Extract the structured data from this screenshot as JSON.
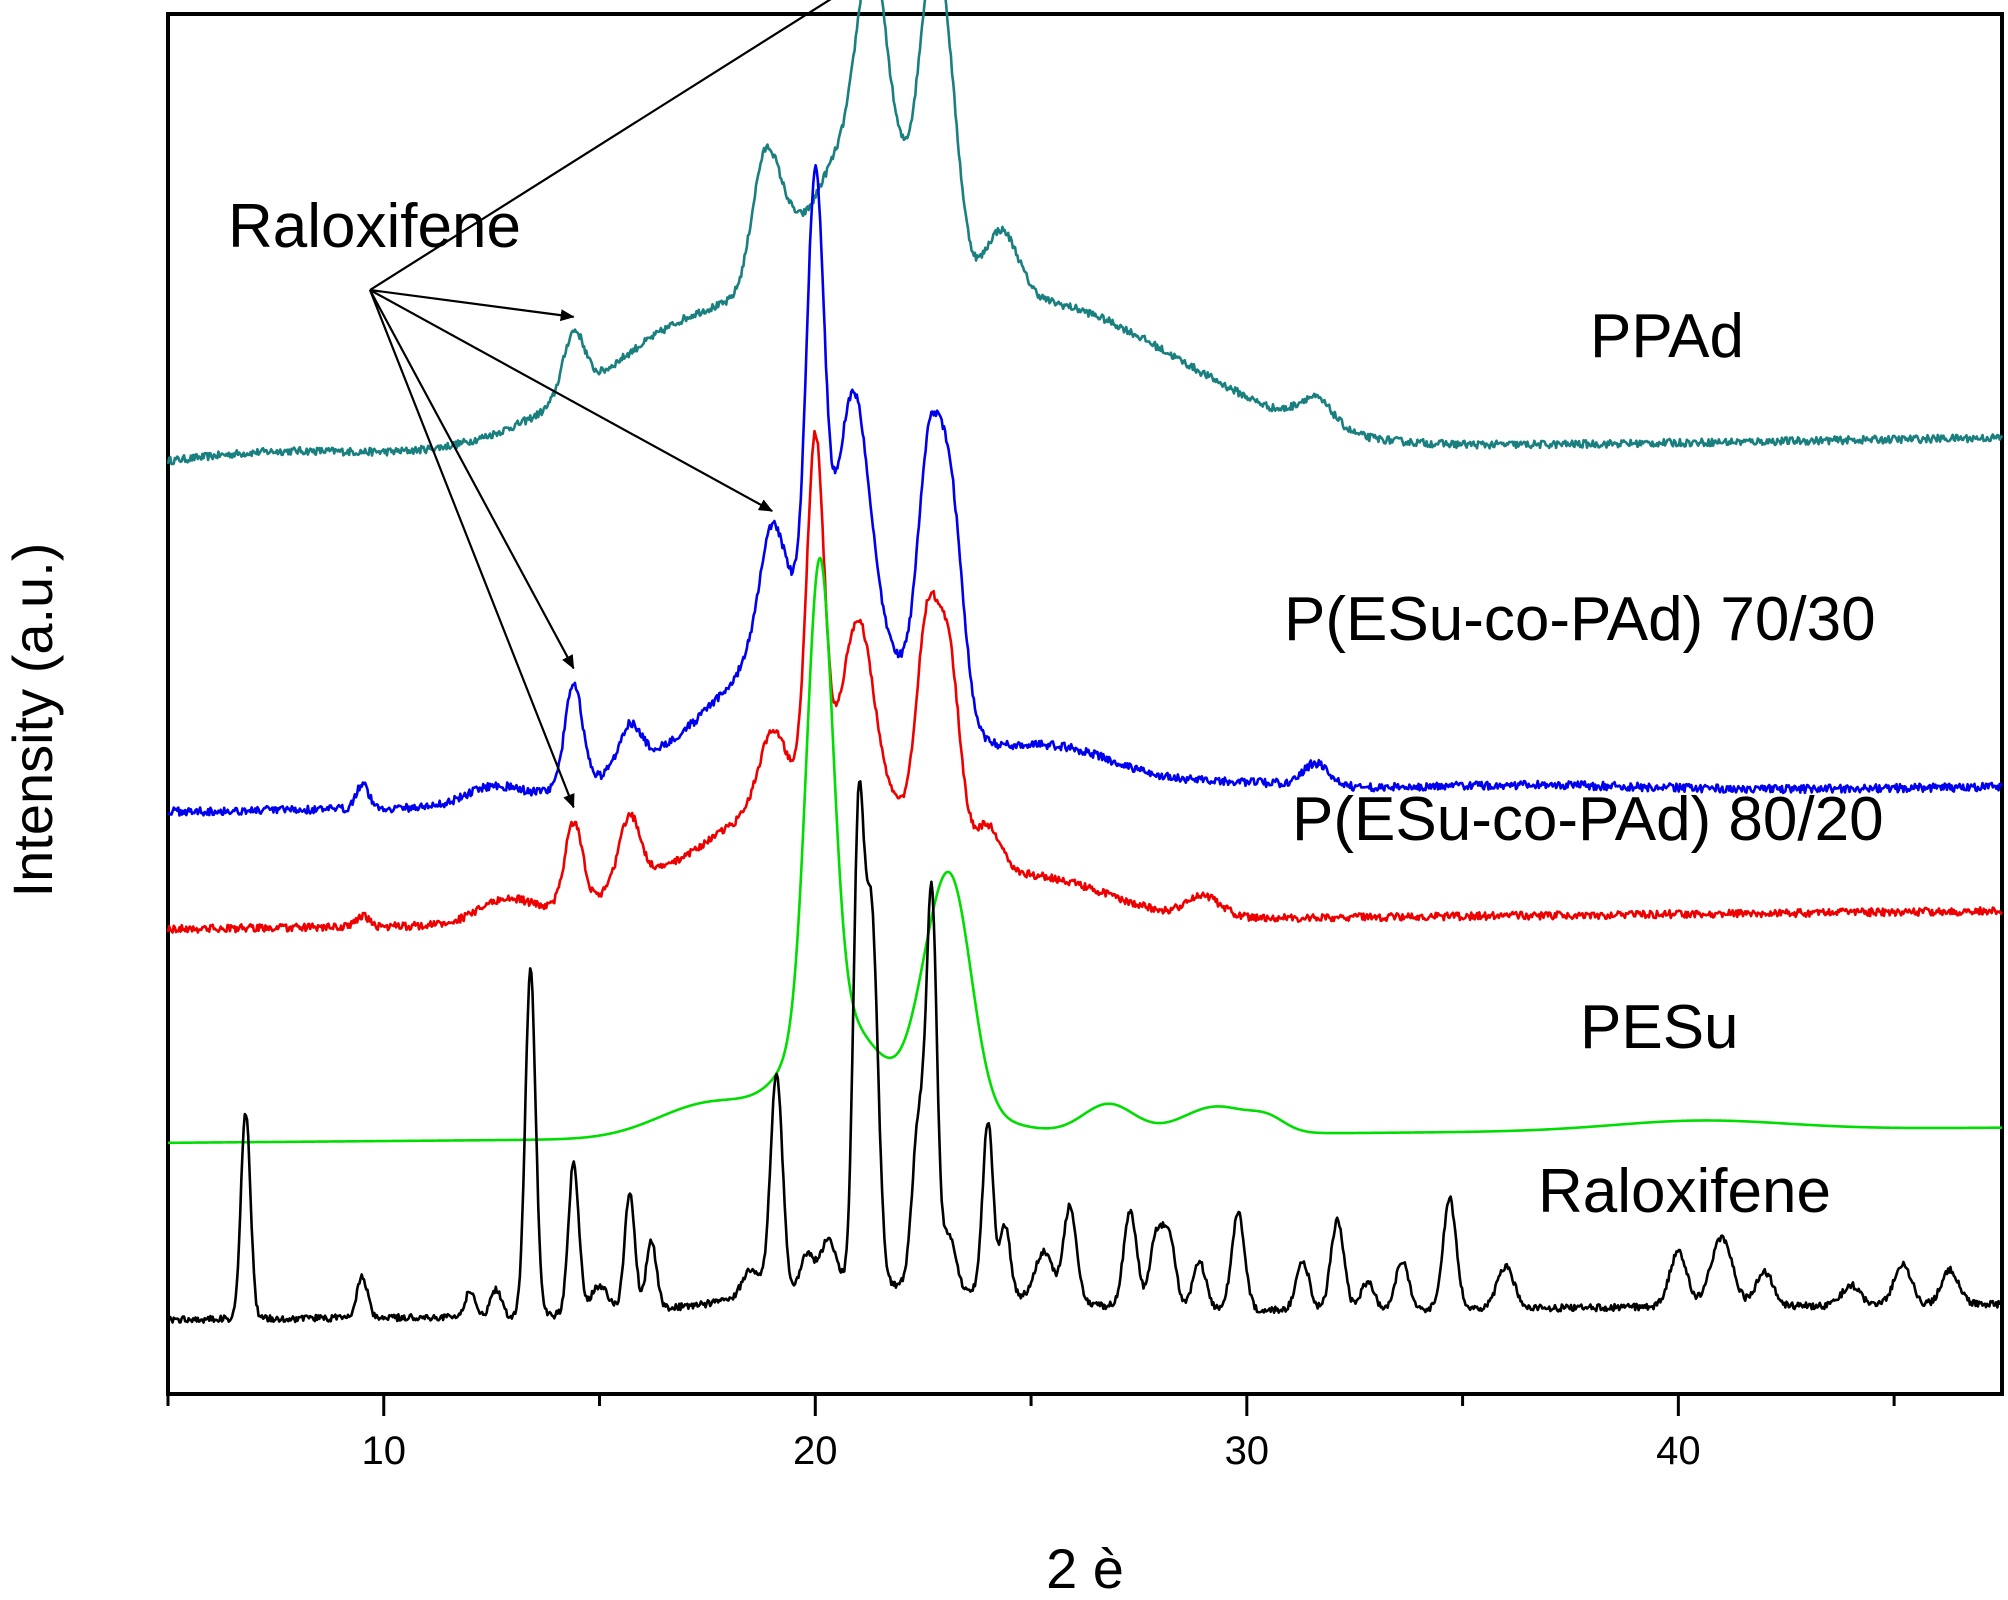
{
  "chart_data": {
    "type": "line",
    "title": "",
    "xlabel": "2 è",
    "ylabel": "Intensity (a.u.)",
    "xlim": [
      5,
      47.5
    ],
    "ylim": [
      0,
      100
    ],
    "xticks": [
      10,
      20,
      30,
      40
    ],
    "xtick_labels": [
      "10",
      "20",
      "30",
      "40"
    ],
    "yticks_shown": false,
    "grid": false,
    "annotation": {
      "label": "Raloxifene",
      "arrow_targets": [
        {
          "series": "PPAd",
          "x": 14.4
        },
        {
          "series": "PPAd",
          "x": 22.7
        },
        {
          "series": "P(ESu-co-PAd) 70/30",
          "x": 14.4
        },
        {
          "series": "P(ESu-co-PAd) 70/30",
          "x": 19.0
        },
        {
          "series": "P(ESu-co-PAd) 80/20",
          "x": 14.4
        }
      ]
    },
    "series": [
      {
        "name": "PPAd",
        "color": "#1a7f7f",
        "baseline_start": 67.2,
        "baseline_end": 69.3,
        "peaks": [
          [
            7.5,
            0.9,
            2.0
          ],
          [
            13.8,
            0.5,
            1.5
          ],
          [
            14.4,
            4.5,
            0.25
          ],
          [
            16.0,
            2.2,
            1.5
          ],
          [
            18.0,
            2.5,
            1.5
          ],
          [
            18.8,
            7.5,
            0.3
          ],
          [
            19.2,
            5.0,
            0.4
          ],
          [
            20.5,
            10.0,
            0.6
          ],
          [
            21.3,
            18.5,
            0.35
          ],
          [
            22.0,
            8.0,
            0.5
          ],
          [
            22.7,
            18.0,
            0.3
          ],
          [
            23.1,
            11.0,
            0.3
          ],
          [
            24.3,
            5.0,
            0.4
          ],
          [
            21.5,
            10.5,
            4.5
          ],
          [
            26.0,
            3.5,
            2.0
          ],
          [
            29.0,
            1.8,
            2.0
          ],
          [
            31.6,
            2.0,
            0.4
          ]
        ],
        "noise": 0.28
      },
      {
        "name": "P(ESu-co-PAd) 70/30",
        "color": "#0000ee",
        "baseline_start": 42.2,
        "baseline_end": 44.0,
        "peaks": [
          [
            9.5,
            1.8,
            0.15
          ],
          [
            12.5,
            1.2,
            0.6
          ],
          [
            14.4,
            7.5,
            0.2
          ],
          [
            15.7,
            3.0,
            0.25
          ],
          [
            19.0,
            8.0,
            0.3
          ],
          [
            20.0,
            31.0,
            0.2
          ],
          [
            20.9,
            16.0,
            0.35
          ],
          [
            22.6,
            15.0,
            0.25
          ],
          [
            23.1,
            17.5,
            0.3
          ],
          [
            20.5,
            12.0,
            1.8
          ],
          [
            18.0,
            4.0,
            2.5
          ],
          [
            25.5,
            3.5,
            1.5
          ],
          [
            29.5,
            1.0,
            2.0
          ],
          [
            31.6,
            1.6,
            0.3
          ],
          [
            36.0,
            0.6,
            3.0
          ]
        ],
        "noise": 0.3
      },
      {
        "name": "P(ESu-co-PAd) 80/20",
        "color": "#ee0000",
        "baseline_start": 33.7,
        "baseline_end": 35.0,
        "peaks": [
          [
            9.5,
            0.8,
            0.15
          ],
          [
            12.8,
            1.5,
            0.6
          ],
          [
            14.4,
            6.0,
            0.2
          ],
          [
            15.7,
            5.0,
            0.25
          ],
          [
            19.0,
            5.0,
            0.3
          ],
          [
            20.0,
            25.0,
            0.2
          ],
          [
            21.0,
            12.0,
            0.35
          ],
          [
            22.6,
            15.0,
            0.25
          ],
          [
            23.1,
            13.5,
            0.25
          ],
          [
            24.0,
            3.0,
            0.3
          ],
          [
            20.8,
            8.0,
            2.0
          ],
          [
            18.0,
            4.0,
            2.5
          ],
          [
            25.5,
            2.5,
            1.5
          ],
          [
            29.0,
            1.5,
            0.4
          ]
        ],
        "noise": 0.28
      },
      {
        "name": "PESu",
        "color": "#00dd00",
        "baseline_start": 18.2,
        "baseline_end": 19.3,
        "peaks": [
          [
            17.5,
            2.3,
            1.2
          ],
          [
            20.1,
            33.0,
            0.3
          ],
          [
            20.3,
            6.0,
            0.8
          ],
          [
            22.6,
            5.0,
            0.4
          ],
          [
            23.2,
            14.5,
            0.45
          ],
          [
            21.5,
            4.0,
            1.8
          ],
          [
            26.8,
            2.2,
            0.6
          ],
          [
            29.3,
            2.0,
            0.8
          ],
          [
            30.5,
            0.8,
            0.4
          ],
          [
            40.5,
            0.7,
            2.0
          ]
        ],
        "noise": 0.0
      },
      {
        "name": "Raloxifene",
        "color": "#000000",
        "baseline_start": 5.4,
        "baseline_end": 6.5,
        "peaks": [
          [
            6.8,
            15.0,
            0.11
          ],
          [
            9.5,
            3.0,
            0.12
          ],
          [
            12.0,
            1.8,
            0.12
          ],
          [
            12.6,
            2.0,
            0.12
          ],
          [
            13.4,
            25.0,
            0.12
          ],
          [
            14.4,
            11.0,
            0.12
          ],
          [
            15.0,
            2.0,
            0.2
          ],
          [
            15.7,
            8.5,
            0.12
          ],
          [
            16.2,
            5.0,
            0.12
          ],
          [
            18.5,
            2.0,
            0.2
          ],
          [
            19.1,
            16.0,
            0.14
          ],
          [
            19.8,
            2.5,
            0.15
          ],
          [
            20.3,
            3.5,
            0.2
          ],
          [
            21.0,
            32.5,
            0.12
          ],
          [
            21.3,
            27.0,
            0.15
          ],
          [
            22.4,
            12.0,
            0.15
          ],
          [
            22.7,
            27.5,
            0.12
          ],
          [
            23.1,
            4.0,
            0.15
          ],
          [
            24.0,
            12.5,
            0.12
          ],
          [
            24.4,
            5.0,
            0.12
          ],
          [
            25.3,
            3.5,
            0.2
          ],
          [
            25.9,
            7.0,
            0.15
          ],
          [
            27.3,
            7.0,
            0.15
          ],
          [
            27.9,
            5.0,
            0.15
          ],
          [
            28.2,
            5.0,
            0.15
          ],
          [
            28.9,
            3.5,
            0.15
          ],
          [
            29.8,
            7.0,
            0.15
          ],
          [
            31.3,
            3.5,
            0.15
          ],
          [
            32.1,
            6.5,
            0.15
          ],
          [
            32.8,
            2.0,
            0.15
          ],
          [
            33.6,
            3.5,
            0.15
          ],
          [
            34.7,
            8.0,
            0.15
          ],
          [
            36.0,
            3.0,
            0.2
          ],
          [
            40.0,
            4.0,
            0.2
          ],
          [
            41.0,
            5.0,
            0.25
          ],
          [
            42.0,
            2.5,
            0.2
          ],
          [
            44.0,
            1.5,
            0.2
          ],
          [
            45.2,
            3.0,
            0.2
          ],
          [
            46.3,
            2.5,
            0.2
          ],
          [
            21.5,
            2.0,
            3.0
          ]
        ],
        "noise": 0.25
      }
    ],
    "series_labels": [
      {
        "text": "PPAd",
        "series": "PPAd"
      },
      {
        "text": "P(ESu-co-PAd) 70/30",
        "series": "P(ESu-co-PAd) 70/30"
      },
      {
        "text": "P(ESu-co-PAd) 80/20",
        "series": "P(ESu-co-PAd) 80/20"
      },
      {
        "text": "PESu",
        "series": "PESu"
      },
      {
        "text": "Raloxifene",
        "series": "Raloxifene"
      }
    ]
  }
}
